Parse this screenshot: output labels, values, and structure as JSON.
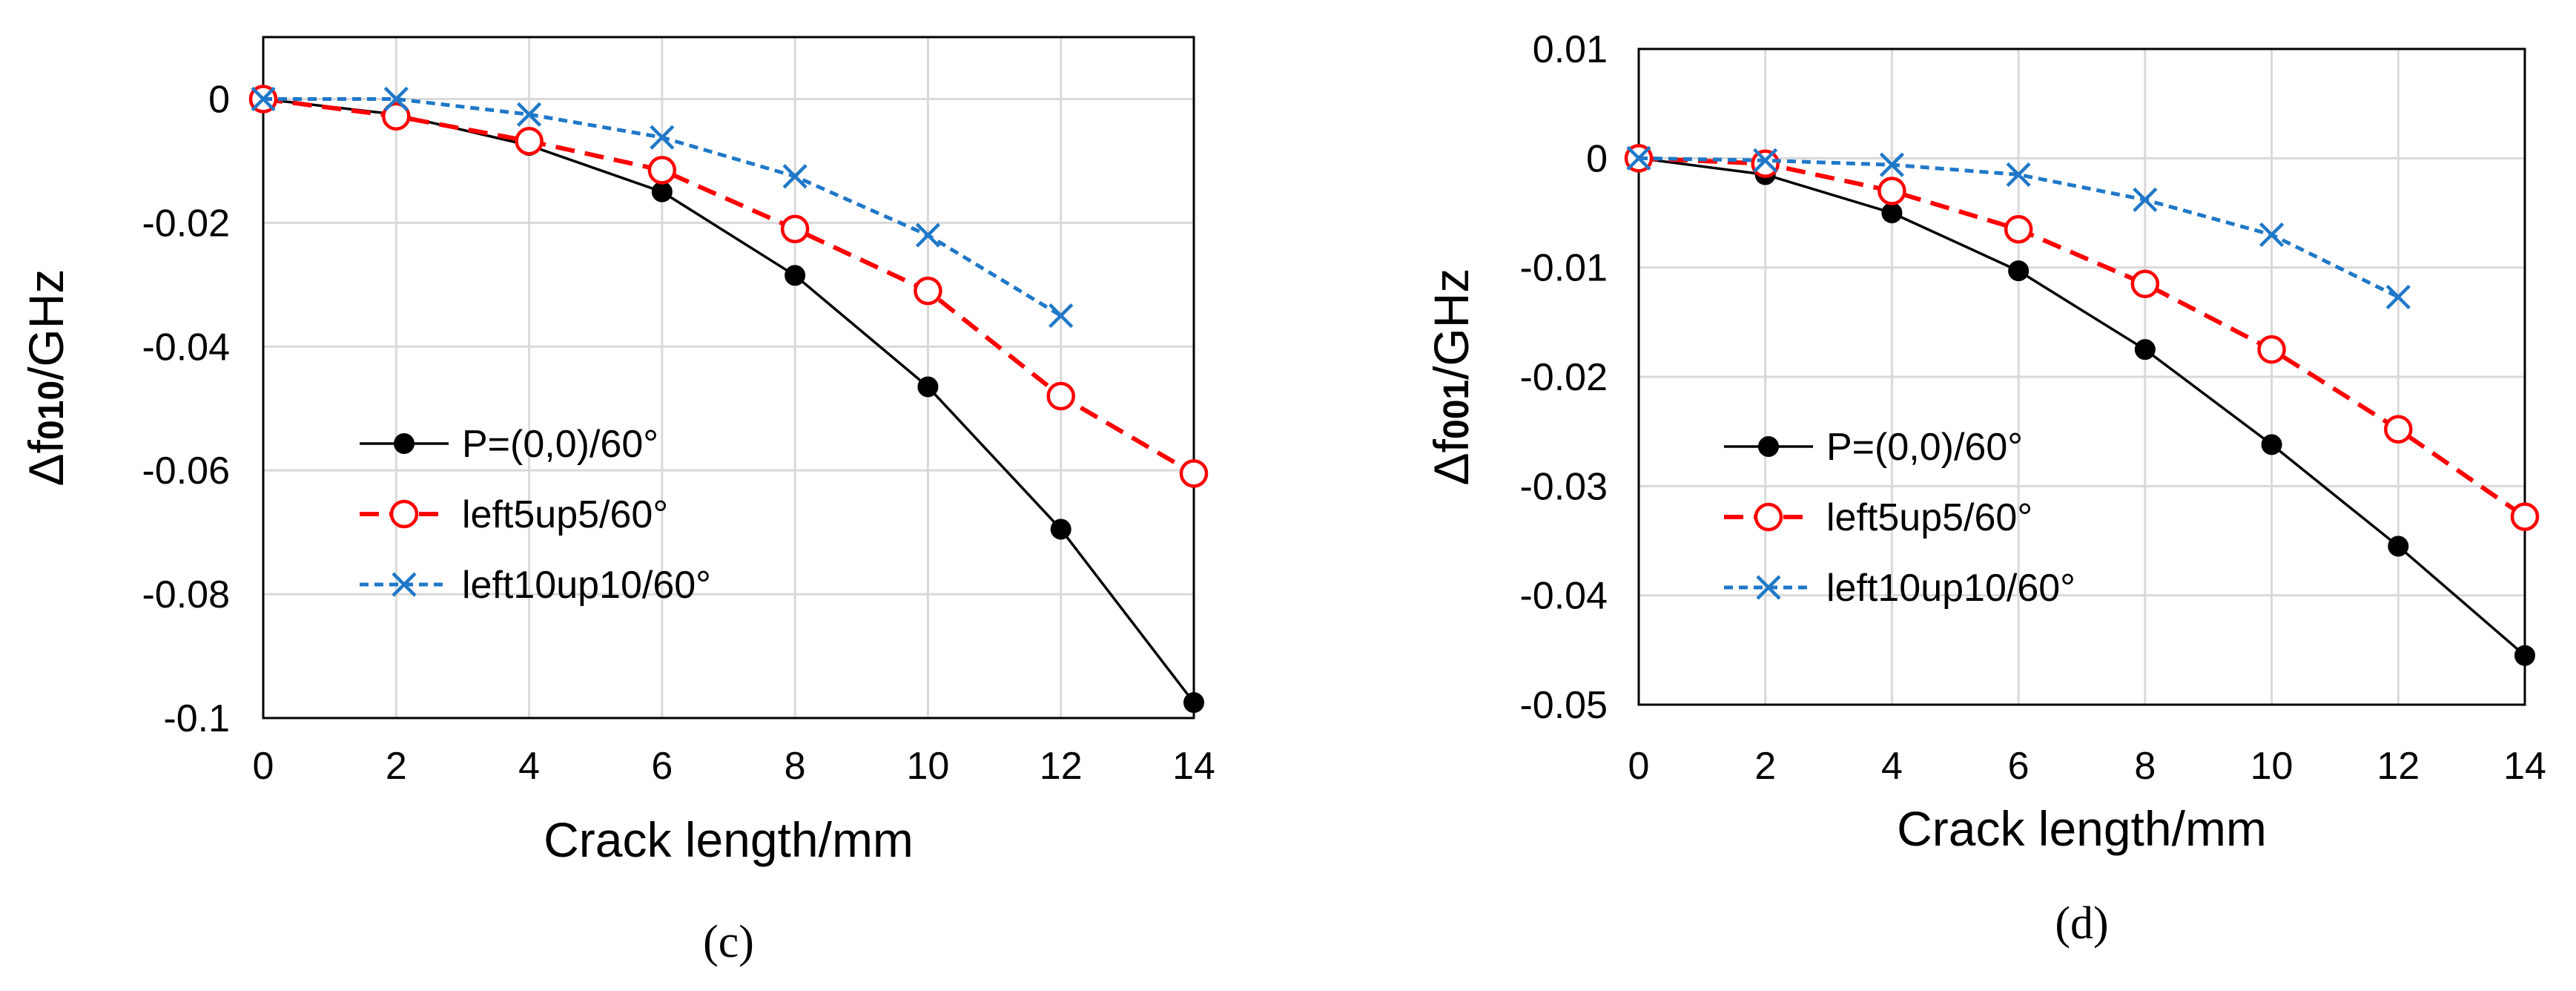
{
  "chart_data": [
    {
      "type": "line",
      "panel": "c",
      "caption": "(c)",
      "xlabel": "Crack length/mm",
      "ylabel_prefix": "Δf",
      "ylabel_sub": "010",
      "ylabel_suffix": "/GHz",
      "xlim": [
        0,
        14
      ],
      "ylim": [
        -0.1,
        0.01
      ],
      "xticks": [
        0,
        2,
        4,
        6,
        8,
        10,
        12,
        14
      ],
      "xtick_labels": [
        "0",
        "2",
        "4",
        "6",
        "8",
        "10",
        "12",
        "14"
      ],
      "yticks": [
        0,
        -0.02,
        -0.04,
        -0.06,
        -0.08,
        -0.1
      ],
      "ytick_labels": [
        "0",
        "-0.02",
        "-0.04",
        "-0.06",
        "-0.08",
        "-0.1"
      ],
      "grid": true,
      "legend_position": "bottom-left",
      "series": [
        {
          "name": "P=(0,0)/60°",
          "color": "#000000",
          "marker": "filled-circle",
          "line": "solid",
          "x": [
            0,
            2,
            4,
            6,
            8,
            10,
            12,
            14
          ],
          "values": [
            0,
            -0.0025,
            -0.0075,
            -0.015,
            -0.0285,
            -0.0465,
            -0.0695,
            -0.0975
          ]
        },
        {
          "name": "left5up5/60°",
          "color": "#ff0000",
          "marker": "open-circle",
          "line": "dashed",
          "x": [
            0,
            2,
            4,
            6,
            8,
            10,
            12,
            14
          ],
          "values": [
            0,
            -0.0028,
            -0.0068,
            -0.0115,
            -0.021,
            -0.031,
            -0.048,
            -0.0605
          ]
        },
        {
          "name": "left10up10/60°",
          "color": "#1f78c8",
          "marker": "x",
          "line": "dotted",
          "x": [
            0,
            2,
            4,
            6,
            8,
            10,
            12
          ],
          "values": [
            0,
            0,
            -0.0025,
            -0.0062,
            -0.0125,
            -0.022,
            -0.035
          ]
        }
      ]
    },
    {
      "type": "line",
      "panel": "d",
      "caption": "(d)",
      "xlabel": "Crack length/mm",
      "ylabel_prefix": "Δf",
      "ylabel_sub": "001",
      "ylabel_suffix": "/GHz",
      "xlim": [
        0,
        14
      ],
      "ylim": [
        -0.05,
        0.01
      ],
      "xticks": [
        0,
        2,
        4,
        6,
        8,
        10,
        12,
        14
      ],
      "xtick_labels": [
        "0",
        "2",
        "4",
        "6",
        "8",
        "10",
        "12",
        "14"
      ],
      "yticks": [
        0.01,
        0,
        -0.01,
        -0.02,
        -0.03,
        -0.04,
        -0.05
      ],
      "ytick_labels": [
        "0.01",
        "0",
        "-0.01",
        "-0.02",
        "-0.03",
        "-0.04",
        "-0.05"
      ],
      "grid": true,
      "legend_position": "bottom-left",
      "series": [
        {
          "name": "P=(0,0)/60°",
          "color": "#000000",
          "marker": "filled-circle",
          "line": "solid",
          "x": [
            0,
            2,
            4,
            6,
            8,
            10,
            12,
            14
          ],
          "values": [
            0,
            -0.0015,
            -0.005,
            -0.0103,
            -0.0175,
            -0.0262,
            -0.0355,
            -0.0455
          ]
        },
        {
          "name": "left5up5/60°",
          "color": "#ff0000",
          "marker": "open-circle",
          "line": "dashed",
          "x": [
            0,
            2,
            4,
            6,
            8,
            10,
            12,
            14
          ],
          "values": [
            0,
            -0.0005,
            -0.003,
            -0.0065,
            -0.0115,
            -0.0175,
            -0.0248,
            -0.0328
          ]
        },
        {
          "name": "left10up10/60°",
          "color": "#1f78c8",
          "marker": "x",
          "line": "dotted",
          "x": [
            0,
            2,
            4,
            6,
            8,
            10,
            12
          ],
          "values": [
            0,
            -0.0002,
            -0.0006,
            -0.0015,
            -0.0038,
            -0.007,
            -0.0127
          ]
        }
      ]
    }
  ]
}
